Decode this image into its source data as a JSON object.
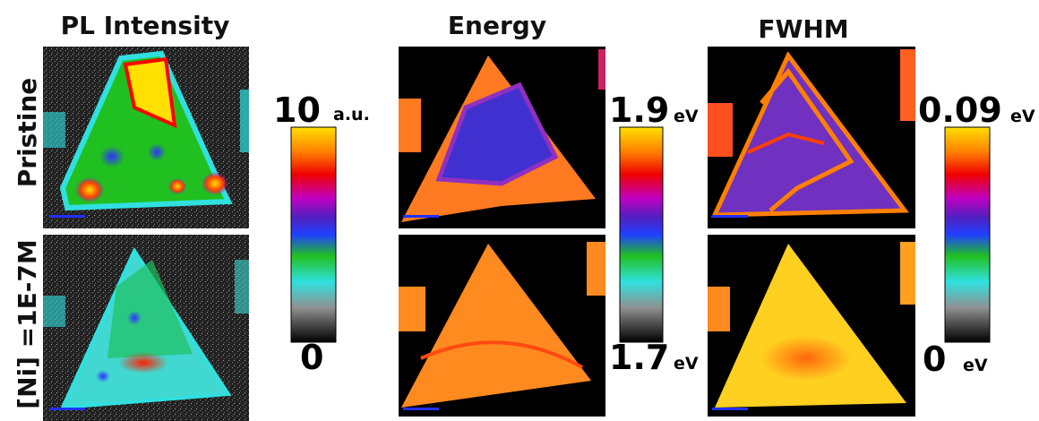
{
  "columns": [
    "PL Intensity",
    "Energy",
    "FWHM"
  ],
  "rows": [
    "Pristine",
    "[Ni] =1E-7M"
  ],
  "colorbars": [
    {
      "max": 10,
      "max_unit": "a.u.",
      "min": 0
    },
    {
      "max": 1.9,
      "max_unit": "eV",
      "min": 1.7,
      "min_unit": "eV"
    },
    {
      "max": 0.09,
      "max_unit": "eV",
      "min": 0,
      "min_unit": "eV"
    }
  ]
}
